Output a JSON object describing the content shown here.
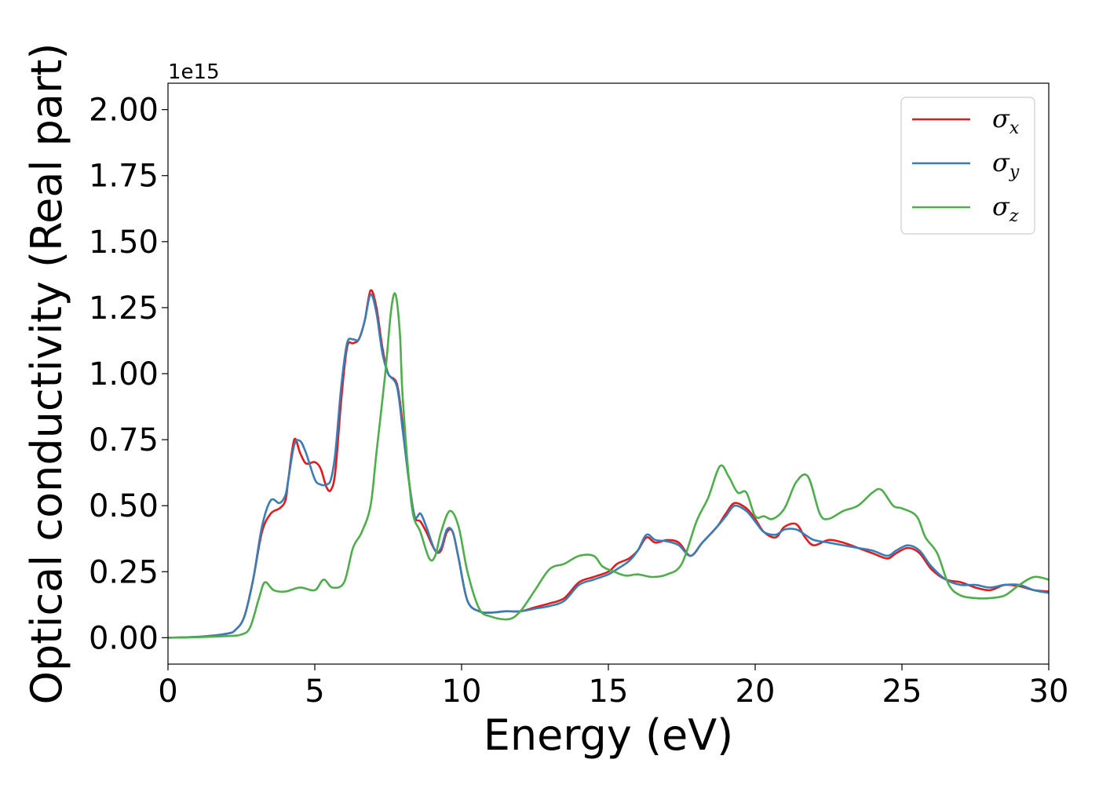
{
  "chart_data": {
    "type": "line",
    "xlabel": "Energy (eV)",
    "ylabel": "Optical conductivity (Real part)",
    "y_offset_label": "1e15",
    "xlim": [
      0,
      30
    ],
    "ylim": [
      -0.1,
      2.1
    ],
    "xticks": [
      0,
      5,
      10,
      15,
      20,
      25,
      30
    ],
    "xtick_labels": [
      "0",
      "5",
      "10",
      "15",
      "20",
      "25",
      "30"
    ],
    "yticks": [
      0,
      0.25,
      0.5,
      0.75,
      1.0,
      1.25,
      1.5,
      1.75,
      2.0
    ],
    "ytick_labels": [
      "0.00",
      "0.25",
      "0.50",
      "0.75",
      "1.00",
      "1.25",
      "1.50",
      "1.75",
      "2.00"
    ],
    "grid": false,
    "legend": "top-right",
    "series": [
      {
        "name": "σx",
        "symbol": "σ",
        "subscript": "x",
        "color": "#e41a1c",
        "points": [
          [
            0,
            0
          ],
          [
            1,
            0.003
          ],
          [
            2,
            0.015
          ],
          [
            2.3,
            0.03
          ],
          [
            2.6,
            0.08
          ],
          [
            2.9,
            0.22
          ],
          [
            3.2,
            0.4
          ],
          [
            3.5,
            0.47
          ],
          [
            3.8,
            0.49
          ],
          [
            4.0,
            0.52
          ],
          [
            4.1,
            0.6
          ],
          [
            4.3,
            0.75
          ],
          [
            4.5,
            0.7
          ],
          [
            4.7,
            0.66
          ],
          [
            5.0,
            0.665
          ],
          [
            5.2,
            0.64
          ],
          [
            5.4,
            0.57
          ],
          [
            5.55,
            0.56
          ],
          [
            5.7,
            0.63
          ],
          [
            5.9,
            0.9
          ],
          [
            6.1,
            1.1
          ],
          [
            6.3,
            1.115
          ],
          [
            6.5,
            1.13
          ],
          [
            6.7,
            1.2
          ],
          [
            6.9,
            1.315
          ],
          [
            7.1,
            1.25
          ],
          [
            7.3,
            1.1
          ],
          [
            7.5,
            1.0
          ],
          [
            7.8,
            0.96
          ],
          [
            8.0,
            0.8
          ],
          [
            8.2,
            0.6
          ],
          [
            8.4,
            0.46
          ],
          [
            8.6,
            0.44
          ],
          [
            8.8,
            0.4
          ],
          [
            9.1,
            0.33
          ],
          [
            9.3,
            0.33
          ],
          [
            9.5,
            0.4
          ],
          [
            9.7,
            0.4
          ],
          [
            9.9,
            0.3
          ],
          [
            10.2,
            0.14
          ],
          [
            10.6,
            0.1
          ],
          [
            11.0,
            0.095
          ],
          [
            11.5,
            0.1
          ],
          [
            12.0,
            0.1
          ],
          [
            12.5,
            0.115
          ],
          [
            13.0,
            0.13
          ],
          [
            13.5,
            0.15
          ],
          [
            14.0,
            0.21
          ],
          [
            14.5,
            0.23
          ],
          [
            15.0,
            0.25
          ],
          [
            15.3,
            0.28
          ],
          [
            15.7,
            0.3
          ],
          [
            16.0,
            0.33
          ],
          [
            16.3,
            0.38
          ],
          [
            16.6,
            0.36
          ],
          [
            17.0,
            0.37
          ],
          [
            17.4,
            0.36
          ],
          [
            17.8,
            0.31
          ],
          [
            18.2,
            0.36
          ],
          [
            18.7,
            0.42
          ],
          [
            19.0,
            0.47
          ],
          [
            19.3,
            0.51
          ],
          [
            19.7,
            0.49
          ],
          [
            20.0,
            0.45
          ],
          [
            20.3,
            0.4
          ],
          [
            20.7,
            0.38
          ],
          [
            21.0,
            0.42
          ],
          [
            21.4,
            0.43
          ],
          [
            21.7,
            0.38
          ],
          [
            22.0,
            0.35
          ],
          [
            22.5,
            0.37
          ],
          [
            23.0,
            0.36
          ],
          [
            23.5,
            0.34
          ],
          [
            24.0,
            0.32
          ],
          [
            24.5,
            0.3
          ],
          [
            24.8,
            0.32
          ],
          [
            25.2,
            0.34
          ],
          [
            25.6,
            0.32
          ],
          [
            26.0,
            0.26
          ],
          [
            26.5,
            0.22
          ],
          [
            27.0,
            0.21
          ],
          [
            27.5,
            0.19
          ],
          [
            28.0,
            0.18
          ],
          [
            28.5,
            0.2
          ],
          [
            29.0,
            0.195
          ],
          [
            29.5,
            0.18
          ],
          [
            30.0,
            0.175
          ]
        ]
      },
      {
        "name": "σy",
        "symbol": "σ",
        "subscript": "y",
        "color": "#377eb8",
        "points": [
          [
            0,
            0
          ],
          [
            1,
            0.003
          ],
          [
            2,
            0.015
          ],
          [
            2.3,
            0.03
          ],
          [
            2.6,
            0.08
          ],
          [
            2.9,
            0.22
          ],
          [
            3.2,
            0.42
          ],
          [
            3.5,
            0.52
          ],
          [
            3.8,
            0.51
          ],
          [
            4.0,
            0.54
          ],
          [
            4.1,
            0.6
          ],
          [
            4.3,
            0.73
          ],
          [
            4.5,
            0.745
          ],
          [
            4.7,
            0.7
          ],
          [
            5.0,
            0.6
          ],
          [
            5.2,
            0.58
          ],
          [
            5.4,
            0.58
          ],
          [
            5.55,
            0.6
          ],
          [
            5.7,
            0.7
          ],
          [
            5.9,
            0.95
          ],
          [
            6.1,
            1.115
          ],
          [
            6.3,
            1.13
          ],
          [
            6.5,
            1.13
          ],
          [
            6.7,
            1.2
          ],
          [
            6.9,
            1.3
          ],
          [
            7.1,
            1.23
          ],
          [
            7.3,
            1.08
          ],
          [
            7.5,
            1.0
          ],
          [
            7.8,
            0.95
          ],
          [
            8.0,
            0.78
          ],
          [
            8.2,
            0.6
          ],
          [
            8.4,
            0.46
          ],
          [
            8.6,
            0.47
          ],
          [
            8.8,
            0.42
          ],
          [
            9.1,
            0.33
          ],
          [
            9.3,
            0.34
          ],
          [
            9.5,
            0.41
          ],
          [
            9.7,
            0.4
          ],
          [
            9.9,
            0.3
          ],
          [
            10.2,
            0.14
          ],
          [
            10.6,
            0.1
          ],
          [
            11.0,
            0.095
          ],
          [
            11.5,
            0.1
          ],
          [
            12.0,
            0.1
          ],
          [
            12.5,
            0.11
          ],
          [
            13.0,
            0.12
          ],
          [
            13.5,
            0.14
          ],
          [
            14.0,
            0.2
          ],
          [
            14.5,
            0.22
          ],
          [
            15.0,
            0.24
          ],
          [
            15.3,
            0.26
          ],
          [
            15.7,
            0.29
          ],
          [
            16.0,
            0.33
          ],
          [
            16.3,
            0.39
          ],
          [
            16.6,
            0.37
          ],
          [
            17.0,
            0.365
          ],
          [
            17.4,
            0.35
          ],
          [
            17.8,
            0.31
          ],
          [
            18.2,
            0.36
          ],
          [
            18.7,
            0.42
          ],
          [
            19.0,
            0.46
          ],
          [
            19.3,
            0.5
          ],
          [
            19.7,
            0.48
          ],
          [
            20.0,
            0.44
          ],
          [
            20.3,
            0.4
          ],
          [
            20.7,
            0.39
          ],
          [
            21.0,
            0.41
          ],
          [
            21.4,
            0.41
          ],
          [
            21.7,
            0.39
          ],
          [
            22.0,
            0.37
          ],
          [
            22.5,
            0.36
          ],
          [
            23.0,
            0.35
          ],
          [
            23.5,
            0.34
          ],
          [
            24.0,
            0.33
          ],
          [
            24.5,
            0.31
          ],
          [
            24.8,
            0.33
          ],
          [
            25.2,
            0.35
          ],
          [
            25.6,
            0.33
          ],
          [
            26.0,
            0.27
          ],
          [
            26.5,
            0.22
          ],
          [
            27.0,
            0.2
          ],
          [
            27.5,
            0.2
          ],
          [
            28.0,
            0.19
          ],
          [
            28.5,
            0.2
          ],
          [
            29.0,
            0.2
          ],
          [
            29.5,
            0.18
          ],
          [
            30.0,
            0.17
          ]
        ]
      },
      {
        "name": "σz",
        "symbol": "σ",
        "subscript": "z",
        "color": "#4daf4a",
        "points": [
          [
            0,
            0
          ],
          [
            1,
            0.002
          ],
          [
            2,
            0.006
          ],
          [
            2.5,
            0.012
          ],
          [
            2.8,
            0.04
          ],
          [
            3.1,
            0.15
          ],
          [
            3.3,
            0.21
          ],
          [
            3.6,
            0.18
          ],
          [
            4.0,
            0.175
          ],
          [
            4.5,
            0.19
          ],
          [
            5.0,
            0.18
          ],
          [
            5.3,
            0.22
          ],
          [
            5.6,
            0.19
          ],
          [
            6.0,
            0.21
          ],
          [
            6.3,
            0.34
          ],
          [
            6.6,
            0.4
          ],
          [
            6.9,
            0.5
          ],
          [
            7.1,
            0.7
          ],
          [
            7.4,
            1.0
          ],
          [
            7.6,
            1.24
          ],
          [
            7.75,
            1.3
          ],
          [
            7.9,
            1.15
          ],
          [
            8.0,
            0.9
          ],
          [
            8.3,
            0.5
          ],
          [
            8.6,
            0.4
          ],
          [
            8.9,
            0.3
          ],
          [
            9.1,
            0.31
          ],
          [
            9.3,
            0.4
          ],
          [
            9.6,
            0.48
          ],
          [
            9.9,
            0.42
          ],
          [
            10.2,
            0.25
          ],
          [
            10.6,
            0.11
          ],
          [
            11.0,
            0.08
          ],
          [
            11.6,
            0.07
          ],
          [
            12.0,
            0.1
          ],
          [
            12.5,
            0.18
          ],
          [
            13.0,
            0.26
          ],
          [
            13.5,
            0.28
          ],
          [
            14.0,
            0.31
          ],
          [
            14.5,
            0.31
          ],
          [
            14.8,
            0.27
          ],
          [
            15.2,
            0.25
          ],
          [
            15.6,
            0.235
          ],
          [
            16.0,
            0.24
          ],
          [
            16.5,
            0.23
          ],
          [
            17.0,
            0.24
          ],
          [
            17.5,
            0.28
          ],
          [
            18.0,
            0.44
          ],
          [
            18.4,
            0.53
          ],
          [
            18.8,
            0.65
          ],
          [
            19.1,
            0.61
          ],
          [
            19.4,
            0.55
          ],
          [
            19.7,
            0.55
          ],
          [
            20.0,
            0.46
          ],
          [
            20.3,
            0.46
          ],
          [
            20.6,
            0.45
          ],
          [
            21.0,
            0.49
          ],
          [
            21.4,
            0.59
          ],
          [
            21.8,
            0.61
          ],
          [
            22.2,
            0.47
          ],
          [
            22.5,
            0.45
          ],
          [
            23.0,
            0.48
          ],
          [
            23.5,
            0.5
          ],
          [
            24.0,
            0.55
          ],
          [
            24.3,
            0.56
          ],
          [
            24.7,
            0.5
          ],
          [
            25.0,
            0.49
          ],
          [
            25.5,
            0.46
          ],
          [
            25.8,
            0.38
          ],
          [
            26.2,
            0.32
          ],
          [
            26.6,
            0.2
          ],
          [
            27.0,
            0.16
          ],
          [
            27.5,
            0.15
          ],
          [
            28.0,
            0.15
          ],
          [
            28.5,
            0.16
          ],
          [
            29.0,
            0.2
          ],
          [
            29.5,
            0.23
          ],
          [
            30.0,
            0.22
          ]
        ]
      }
    ]
  }
}
